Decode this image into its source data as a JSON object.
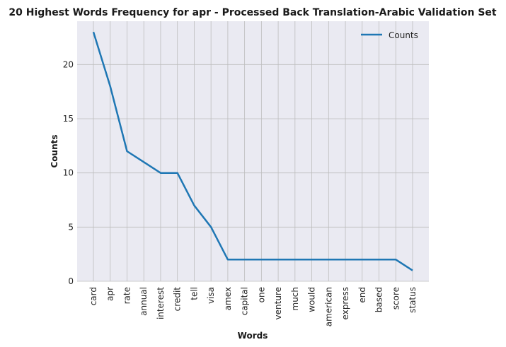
{
  "chart_data": {
    "type": "line",
    "title": "20 Highest Words Frequency for apr - Processed Back Translation-Arabic Validation Set",
    "xlabel": "Words",
    "ylabel": "Counts",
    "categories": [
      "card",
      "apr",
      "rate",
      "annual",
      "interest",
      "credit",
      "tell",
      "visa",
      "amex",
      "capital",
      "one",
      "venture",
      "much",
      "would",
      "american",
      "express",
      "end",
      "based",
      "score",
      "status"
    ],
    "series": [
      {
        "name": "Counts",
        "values": [
          23,
          18,
          12,
          11,
          10,
          10,
          7,
          5,
          2,
          2,
          2,
          2,
          2,
          2,
          2,
          2,
          2,
          2,
          2,
          1
        ]
      }
    ],
    "ylim": [
      0,
      24
    ],
    "yticks": [
      0,
      5,
      10,
      15,
      20
    ],
    "grid": true,
    "legend": "top-right",
    "colors": {
      "line": "#1f77b4",
      "plot_bg": "#eaeaf2",
      "grid": "#bdbdbd"
    }
  }
}
